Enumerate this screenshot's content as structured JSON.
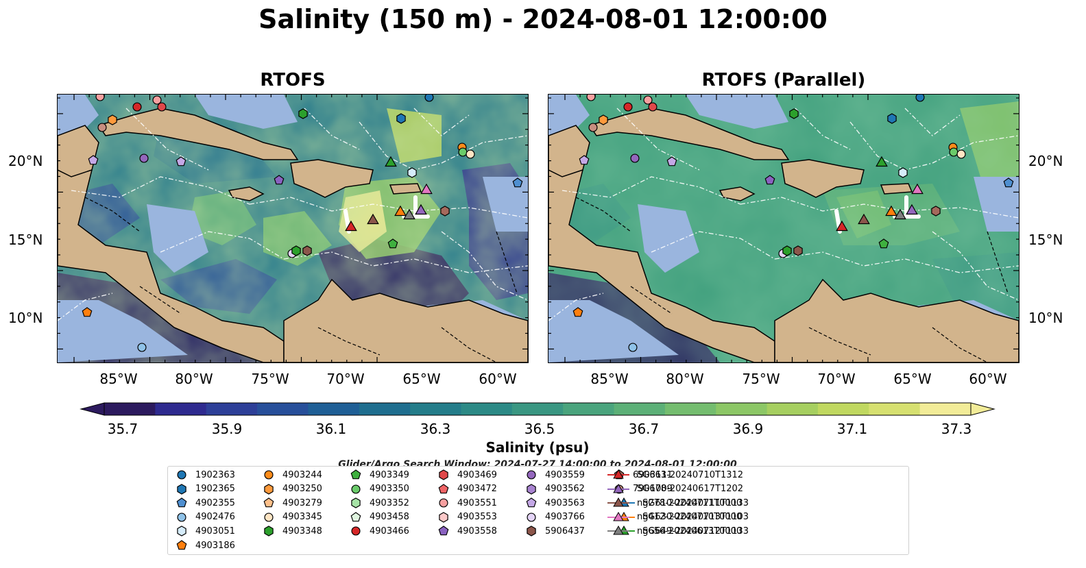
{
  "title": "Salinity (150 m) - 2024-08-01 12:00:00",
  "panels": [
    {
      "title": "RTOFS"
    },
    {
      "title": "RTOFS (Parallel)"
    }
  ],
  "axes": {
    "lat_ticks": [
      "20°N",
      "15°N",
      "10°N"
    ],
    "lon_ticks": [
      "85°W",
      "80°W",
      "75°W",
      "70°W",
      "65°W",
      "60°W"
    ]
  },
  "colorbar": {
    "label": "Salinity (psu)",
    "ticks": [
      "35.7",
      "35.9",
      "36.1",
      "36.3",
      "36.5",
      "36.7",
      "36.9",
      "37.1",
      "37.3"
    ],
    "colors": [
      "#2c1a5e",
      "#2e2a8f",
      "#2d3f98",
      "#274f9a",
      "#1f5f96",
      "#1f6e8f",
      "#247d8a",
      "#2c8a86",
      "#3a9782",
      "#4aa47d",
      "#5cb077",
      "#74bd6f",
      "#8cc766",
      "#a6cf60",
      "#c0d860",
      "#d6e070",
      "#f2ec98"
    ],
    "extend": "both"
  },
  "search_window": "Glider/Argo Search Window: 2024-07-27 14:00:00 to 2024-08-01 12:00:00",
  "legend": [
    {
      "label": "1902363",
      "shape": "circle",
      "color": "#1f77b4"
    },
    {
      "label": "1902365",
      "shape": "hexagon",
      "color": "#1f77b4"
    },
    {
      "label": "4902355",
      "shape": "pentagon",
      "color": "#4f8fd0"
    },
    {
      "label": "4902476",
      "shape": "circle",
      "color": "#8fc2e8"
    },
    {
      "label": "4903051",
      "shape": "hexagon",
      "color": "#d6ecfa"
    },
    {
      "label": "4903186",
      "shape": "pentagon",
      "color": "#ff7f0e"
    },
    {
      "label": "4903244",
      "shape": "circle",
      "color": "#ff8c1a"
    },
    {
      "label": "4903250",
      "shape": "hexagon",
      "color": "#ff9a3c"
    },
    {
      "label": "4903279",
      "shape": "pentagon",
      "color": "#ffc08a"
    },
    {
      "label": "4903345",
      "shape": "circle",
      "color": "#ffe5c4"
    },
    {
      "label": "4903348",
      "shape": "hexagon",
      "color": "#2ca02c"
    },
    {
      "label": "4903349",
      "shape": "pentagon",
      "color": "#3fb03f"
    },
    {
      "label": "4903350",
      "shape": "circle",
      "color": "#6acb6a"
    },
    {
      "label": "4903352",
      "shape": "hexagon",
      "color": "#a6e3a6"
    },
    {
      "label": "4903458",
      "shape": "pentagon",
      "color": "#dff5df"
    },
    {
      "label": "4903466",
      "shape": "circle",
      "color": "#d62728"
    },
    {
      "label": "4903469",
      "shape": "hexagon",
      "color": "#e0484a"
    },
    {
      "label": "4903472",
      "shape": "pentagon",
      "color": "#f06466"
    },
    {
      "label": "4903551",
      "shape": "circle",
      "color": "#f7a0a0"
    },
    {
      "label": "4903553",
      "shape": "hexagon",
      "color": "#fcc9c9"
    },
    {
      "label": "4903558",
      "shape": "pentagon",
      "color": "#8a62c0"
    },
    {
      "label": "4903559",
      "shape": "circle",
      "color": "#9467bd"
    },
    {
      "label": "4903562",
      "shape": "hexagon",
      "color": "#a883d0"
    },
    {
      "label": "4903563",
      "shape": "pentagon",
      "color": "#c4a8e6"
    },
    {
      "label": "4903766",
      "shape": "circle",
      "color": "#e4d4f7"
    },
    {
      "label": "5906437",
      "shape": "hexagon",
      "color": "#8c564b"
    },
    {
      "label": "6903111",
      "shape": "pentagon",
      "color": "#a5695c"
    },
    {
      "label": "7901009",
      "shape": "circle",
      "color": "#c88e80"
    },
    {
      "label": "SG610-20240711T1133",
      "shape": "triangle-line",
      "color": "#1f77b4"
    },
    {
      "label": "SG630-20240713T1103",
      "shape": "triangle-line",
      "color": "#ff7f0e"
    },
    {
      "label": "SG649-20240712T1133",
      "shape": "triangle-line",
      "color": "#2ca02c"
    },
    {
      "label": "SG663-20240710T1312",
      "shape": "triangle-line",
      "color": "#d62728"
    },
    {
      "label": "SG678-20240617T1202",
      "shape": "triangle-line",
      "color": "#9467bd"
    },
    {
      "label": "ng278-20240711T0000",
      "shape": "triangle-line",
      "color": "#8c564b"
    },
    {
      "label": "ng412-20240710T0000",
      "shape": "triangle-line",
      "color": "#e377c2"
    },
    {
      "label": "ng656-20240613T0000",
      "shape": "triangle-line",
      "color": "#7f7f7f"
    }
  ]
}
